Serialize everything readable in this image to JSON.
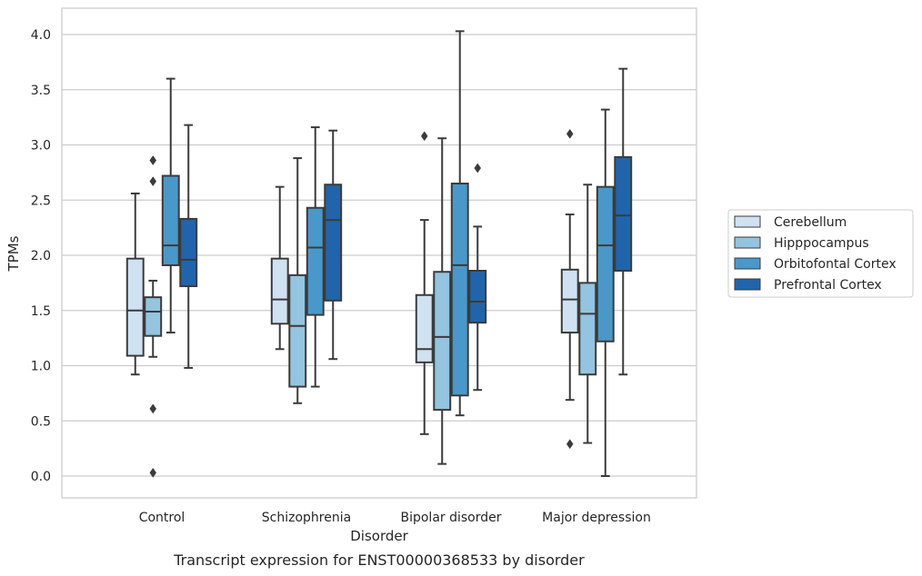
{
  "chart_data": {
    "type": "box",
    "title": "",
    "caption": "Transcript expression for ENST00000368533 by disorder",
    "xlabel": "Disorder",
    "ylabel": "TPMs",
    "ylim": [
      -0.2,
      4.25
    ],
    "yticks": [
      "0.0",
      "0.5",
      "1.0",
      "1.5",
      "2.0",
      "2.5",
      "3.0",
      "3.5",
      "4.0"
    ],
    "categories": [
      "Control",
      "Schizophrenia",
      "Bipolar disorder",
      "Major depression"
    ],
    "grid": "horizontal",
    "legend_position": "right",
    "series": [
      {
        "name": "Cerebellum",
        "color": "#d0e1f2",
        "boxes": [
          {
            "whisker_low": 0.92,
            "q1": 1.09,
            "median": 1.5,
            "q3": 1.97,
            "whisker_high": 2.56,
            "outliers": []
          },
          {
            "whisker_low": 1.15,
            "q1": 1.38,
            "median": 1.6,
            "q3": 1.97,
            "whisker_high": 2.62,
            "outliers": []
          },
          {
            "whisker_low": 0.38,
            "q1": 1.03,
            "median": 1.15,
            "q3": 1.64,
            "whisker_high": 2.32,
            "outliers": [
              3.08
            ]
          },
          {
            "whisker_low": 0.69,
            "q1": 1.3,
            "median": 1.6,
            "q3": 1.87,
            "whisker_high": 2.37,
            "outliers": [
              0.29,
              3.1
            ]
          }
        ]
      },
      {
        "name": "Hipppocampus",
        "color": "#94c4df",
        "boxes": [
          {
            "whisker_low": 1.08,
            "q1": 1.27,
            "median": 1.49,
            "q3": 1.62,
            "whisker_high": 1.77,
            "outliers": [
              0.03,
              0.61,
              2.67,
              2.86
            ]
          },
          {
            "whisker_low": 0.66,
            "q1": 0.81,
            "median": 1.36,
            "q3": 1.82,
            "whisker_high": 2.88,
            "outliers": []
          },
          {
            "whisker_low": 0.11,
            "q1": 0.6,
            "median": 1.26,
            "q3": 1.85,
            "whisker_high": 3.06,
            "outliers": []
          },
          {
            "whisker_low": 0.3,
            "q1": 0.92,
            "median": 1.47,
            "q3": 1.75,
            "whisker_high": 2.64,
            "outliers": []
          }
        ]
      },
      {
        "name": "Orbitofontal Cortex",
        "color": "#4a98c9",
        "boxes": [
          {
            "whisker_low": 1.3,
            "q1": 1.91,
            "median": 2.09,
            "q3": 2.72,
            "whisker_high": 3.6,
            "outliers": []
          },
          {
            "whisker_low": 0.81,
            "q1": 1.46,
            "median": 2.07,
            "q3": 2.43,
            "whisker_high": 3.16,
            "outliers": []
          },
          {
            "whisker_low": 0.55,
            "q1": 0.73,
            "median": 1.91,
            "q3": 2.65,
            "whisker_high": 4.03,
            "outliers": []
          },
          {
            "whisker_low": 0.0,
            "q1": 1.22,
            "median": 2.09,
            "q3": 2.62,
            "whisker_high": 3.32,
            "outliers": []
          }
        ]
      },
      {
        "name": "Prefrontal Cortex",
        "color": "#2164ab",
        "boxes": [
          {
            "whisker_low": 0.98,
            "q1": 1.72,
            "median": 1.96,
            "q3": 2.33,
            "whisker_high": 3.18,
            "outliers": []
          },
          {
            "whisker_low": 1.06,
            "q1": 1.59,
            "median": 2.32,
            "q3": 2.64,
            "whisker_high": 3.13,
            "outliers": []
          },
          {
            "whisker_low": 0.78,
            "q1": 1.39,
            "median": 1.58,
            "q3": 1.86,
            "whisker_high": 2.26,
            "outliers": [
              2.79
            ]
          },
          {
            "whisker_low": 0.92,
            "q1": 1.86,
            "median": 2.36,
            "q3": 2.89,
            "whisker_high": 3.69,
            "outliers": []
          }
        ]
      }
    ]
  }
}
